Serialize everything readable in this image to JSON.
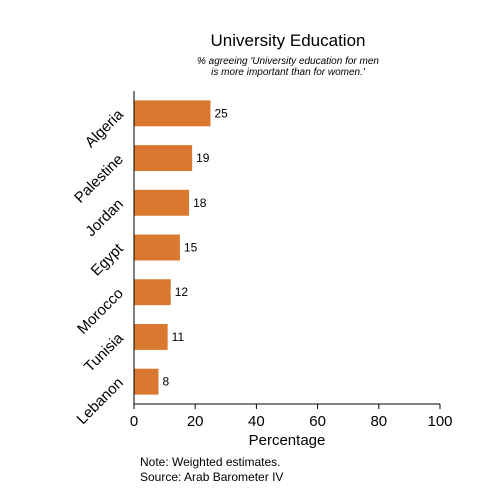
{
  "chart_data": {
    "type": "bar",
    "orientation": "horizontal",
    "title": "University Education",
    "subtitle_lines": [
      "% agreeing 'University education for men",
      "is more important than for women.'"
    ],
    "categories": [
      "Algeria",
      "Palestine",
      "Jordan",
      "Egypt",
      "Morocco",
      "Tunisia",
      "Lebanon"
    ],
    "values": [
      25,
      19,
      18,
      15,
      12,
      11,
      8
    ],
    "data_labels": [
      "25",
      "19",
      "18",
      "15",
      "12",
      "11",
      "8"
    ],
    "xlabel": "Percentage",
    "ylabel": "",
    "xlim": [
      0,
      100
    ],
    "x_ticks": [
      0,
      20,
      40,
      60,
      80,
      100
    ],
    "grid": false,
    "bar_color": "#d9782e",
    "notes": [
      "Note: Weighted estimates.",
      "Source: Arab Barometer IV"
    ]
  }
}
